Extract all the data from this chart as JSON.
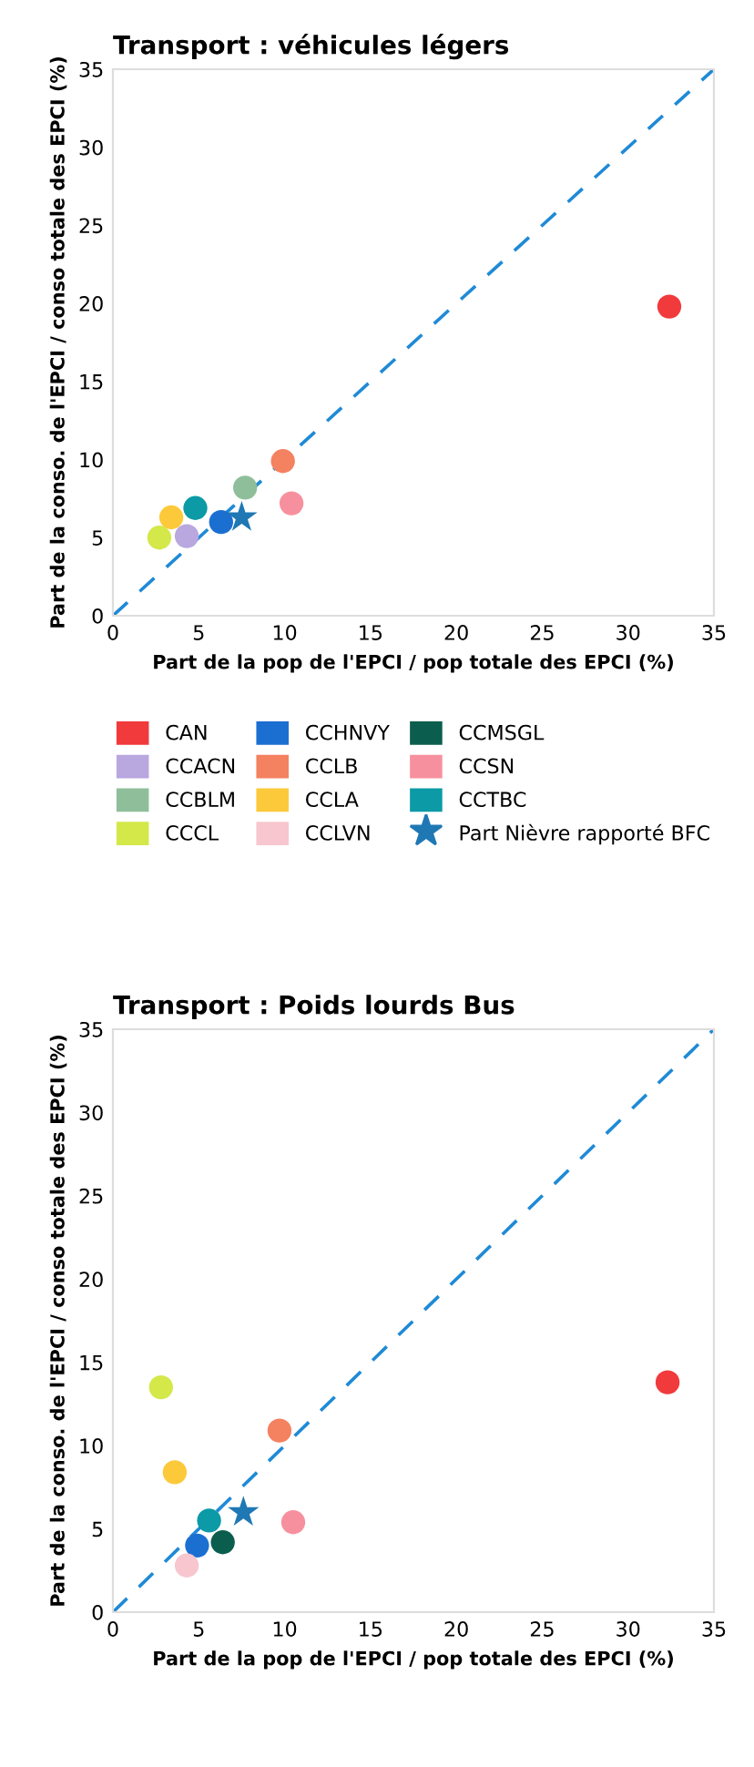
{
  "chart_data": [
    {
      "type": "scatter",
      "title": "Transport : véhicules légers",
      "xlabel": "Part de la pop de l'EPCI / pop totale des EPCI (%)",
      "ylabel": "Part de la conso. de l'EPCI / conso totale des EPCI (%)",
      "xlim": [
        0,
        35
      ],
      "ylim": [
        0,
        35
      ],
      "xticks": [
        0,
        5,
        10,
        15,
        20,
        25,
        30,
        35
      ],
      "yticks": [
        0,
        5,
        10,
        15,
        20,
        25,
        30,
        35
      ],
      "marker": "circle",
      "legend": "bottom",
      "series": [
        {
          "name": "CAN",
          "color": "#f03a3c",
          "x": [
            32.4
          ],
          "values": [
            19.8
          ]
        },
        {
          "name": "CCACN",
          "color": "#b9a7e0",
          "x": [
            4.3
          ],
          "values": [
            5.1
          ]
        },
        {
          "name": "CCBLM",
          "color": "#8fbf9a",
          "x": [
            7.7
          ],
          "values": [
            8.2
          ]
        },
        {
          "name": "CCCL",
          "color": "#d4e84a",
          "x": [
            2.7
          ],
          "values": [
            5.0
          ]
        },
        {
          "name": "CCHNVY",
          "color": "#1b6fd1",
          "x": [
            6.3
          ],
          "values": [
            6.0
          ]
        },
        {
          "name": "CCLB",
          "color": "#f4815f",
          "x": [
            9.9
          ],
          "values": [
            9.9
          ]
        },
        {
          "name": "CCLA",
          "color": "#fcc93a",
          "x": [
            3.4
          ],
          "values": [
            6.3
          ]
        },
        {
          "name": "CCSN",
          "color": "#f7909e",
          "x": [
            10.4
          ],
          "values": [
            7.2
          ]
        },
        {
          "name": "CCTBC",
          "color": "#0b9aa6",
          "x": [
            4.8
          ],
          "values": [
            6.9
          ]
        },
        {
          "name": "Part Nièvre rapporté BFC",
          "color": "#1f78b4",
          "marker": "star",
          "x": [
            7.5
          ],
          "values": [
            6.3
          ]
        },
        {
          "type": "line",
          "color": "#1f8ad6",
          "line_style": "dashed",
          "marker": "none",
          "x": [
            0,
            35
          ],
          "values": [
            0,
            35
          ]
        }
      ]
    },
    {
      "type": "scatter",
      "title": "Transport : Poids lourds Bus",
      "xlabel": "Part de la pop de l'EPCI / pop totale des EPCI (%)",
      "ylabel": "Part de la conso. de l'EPCI / conso totale des EPCI (%)",
      "xlim": [
        0,
        35
      ],
      "ylim": [
        0,
        35
      ],
      "xticks": [
        0,
        5,
        10,
        15,
        20,
        25,
        30,
        35
      ],
      "yticks": [
        0,
        5,
        10,
        15,
        20,
        25,
        30,
        35
      ],
      "marker": "circle",
      "legend": "top",
      "series": [
        {
          "name": "CAN",
          "color": "#f03a3c",
          "x": [
            32.3
          ],
          "values": [
            13.8
          ]
        },
        {
          "name": "CCCL",
          "color": "#d4e84a",
          "x": [
            2.8
          ],
          "values": [
            13.5
          ]
        },
        {
          "name": "CCHNVY",
          "color": "#1b6fd1",
          "x": [
            4.9
          ],
          "values": [
            4.0
          ]
        },
        {
          "name": "CCLB",
          "color": "#f4815f",
          "x": [
            9.7
          ],
          "values": [
            10.9
          ]
        },
        {
          "name": "CCLA",
          "color": "#fcc93a",
          "x": [
            3.6
          ],
          "values": [
            8.4
          ]
        },
        {
          "name": "CCLVN",
          "color": "#f7c6cf",
          "x": [
            4.3
          ],
          "values": [
            2.8
          ]
        },
        {
          "name": "CCMSGL",
          "color": "#0b5e4e",
          "x": [
            6.4
          ],
          "values": [
            4.2
          ]
        },
        {
          "name": "CCSN",
          "color": "#f7909e",
          "x": [
            10.5
          ],
          "values": [
            5.4
          ]
        },
        {
          "name": "CCTBC",
          "color": "#0b9aa6",
          "x": [
            5.6
          ],
          "values": [
            5.5
          ]
        },
        {
          "name": "Part Nièvre rapporté BFC",
          "color": "#1f78b4",
          "marker": "star",
          "x": [
            7.6
          ],
          "values": [
            6.0
          ]
        },
        {
          "type": "line",
          "color": "#1f8ad6",
          "line_style": "dashed",
          "marker": "none",
          "x": [
            0,
            35
          ],
          "values": [
            0,
            35
          ]
        }
      ]
    }
  ]
}
